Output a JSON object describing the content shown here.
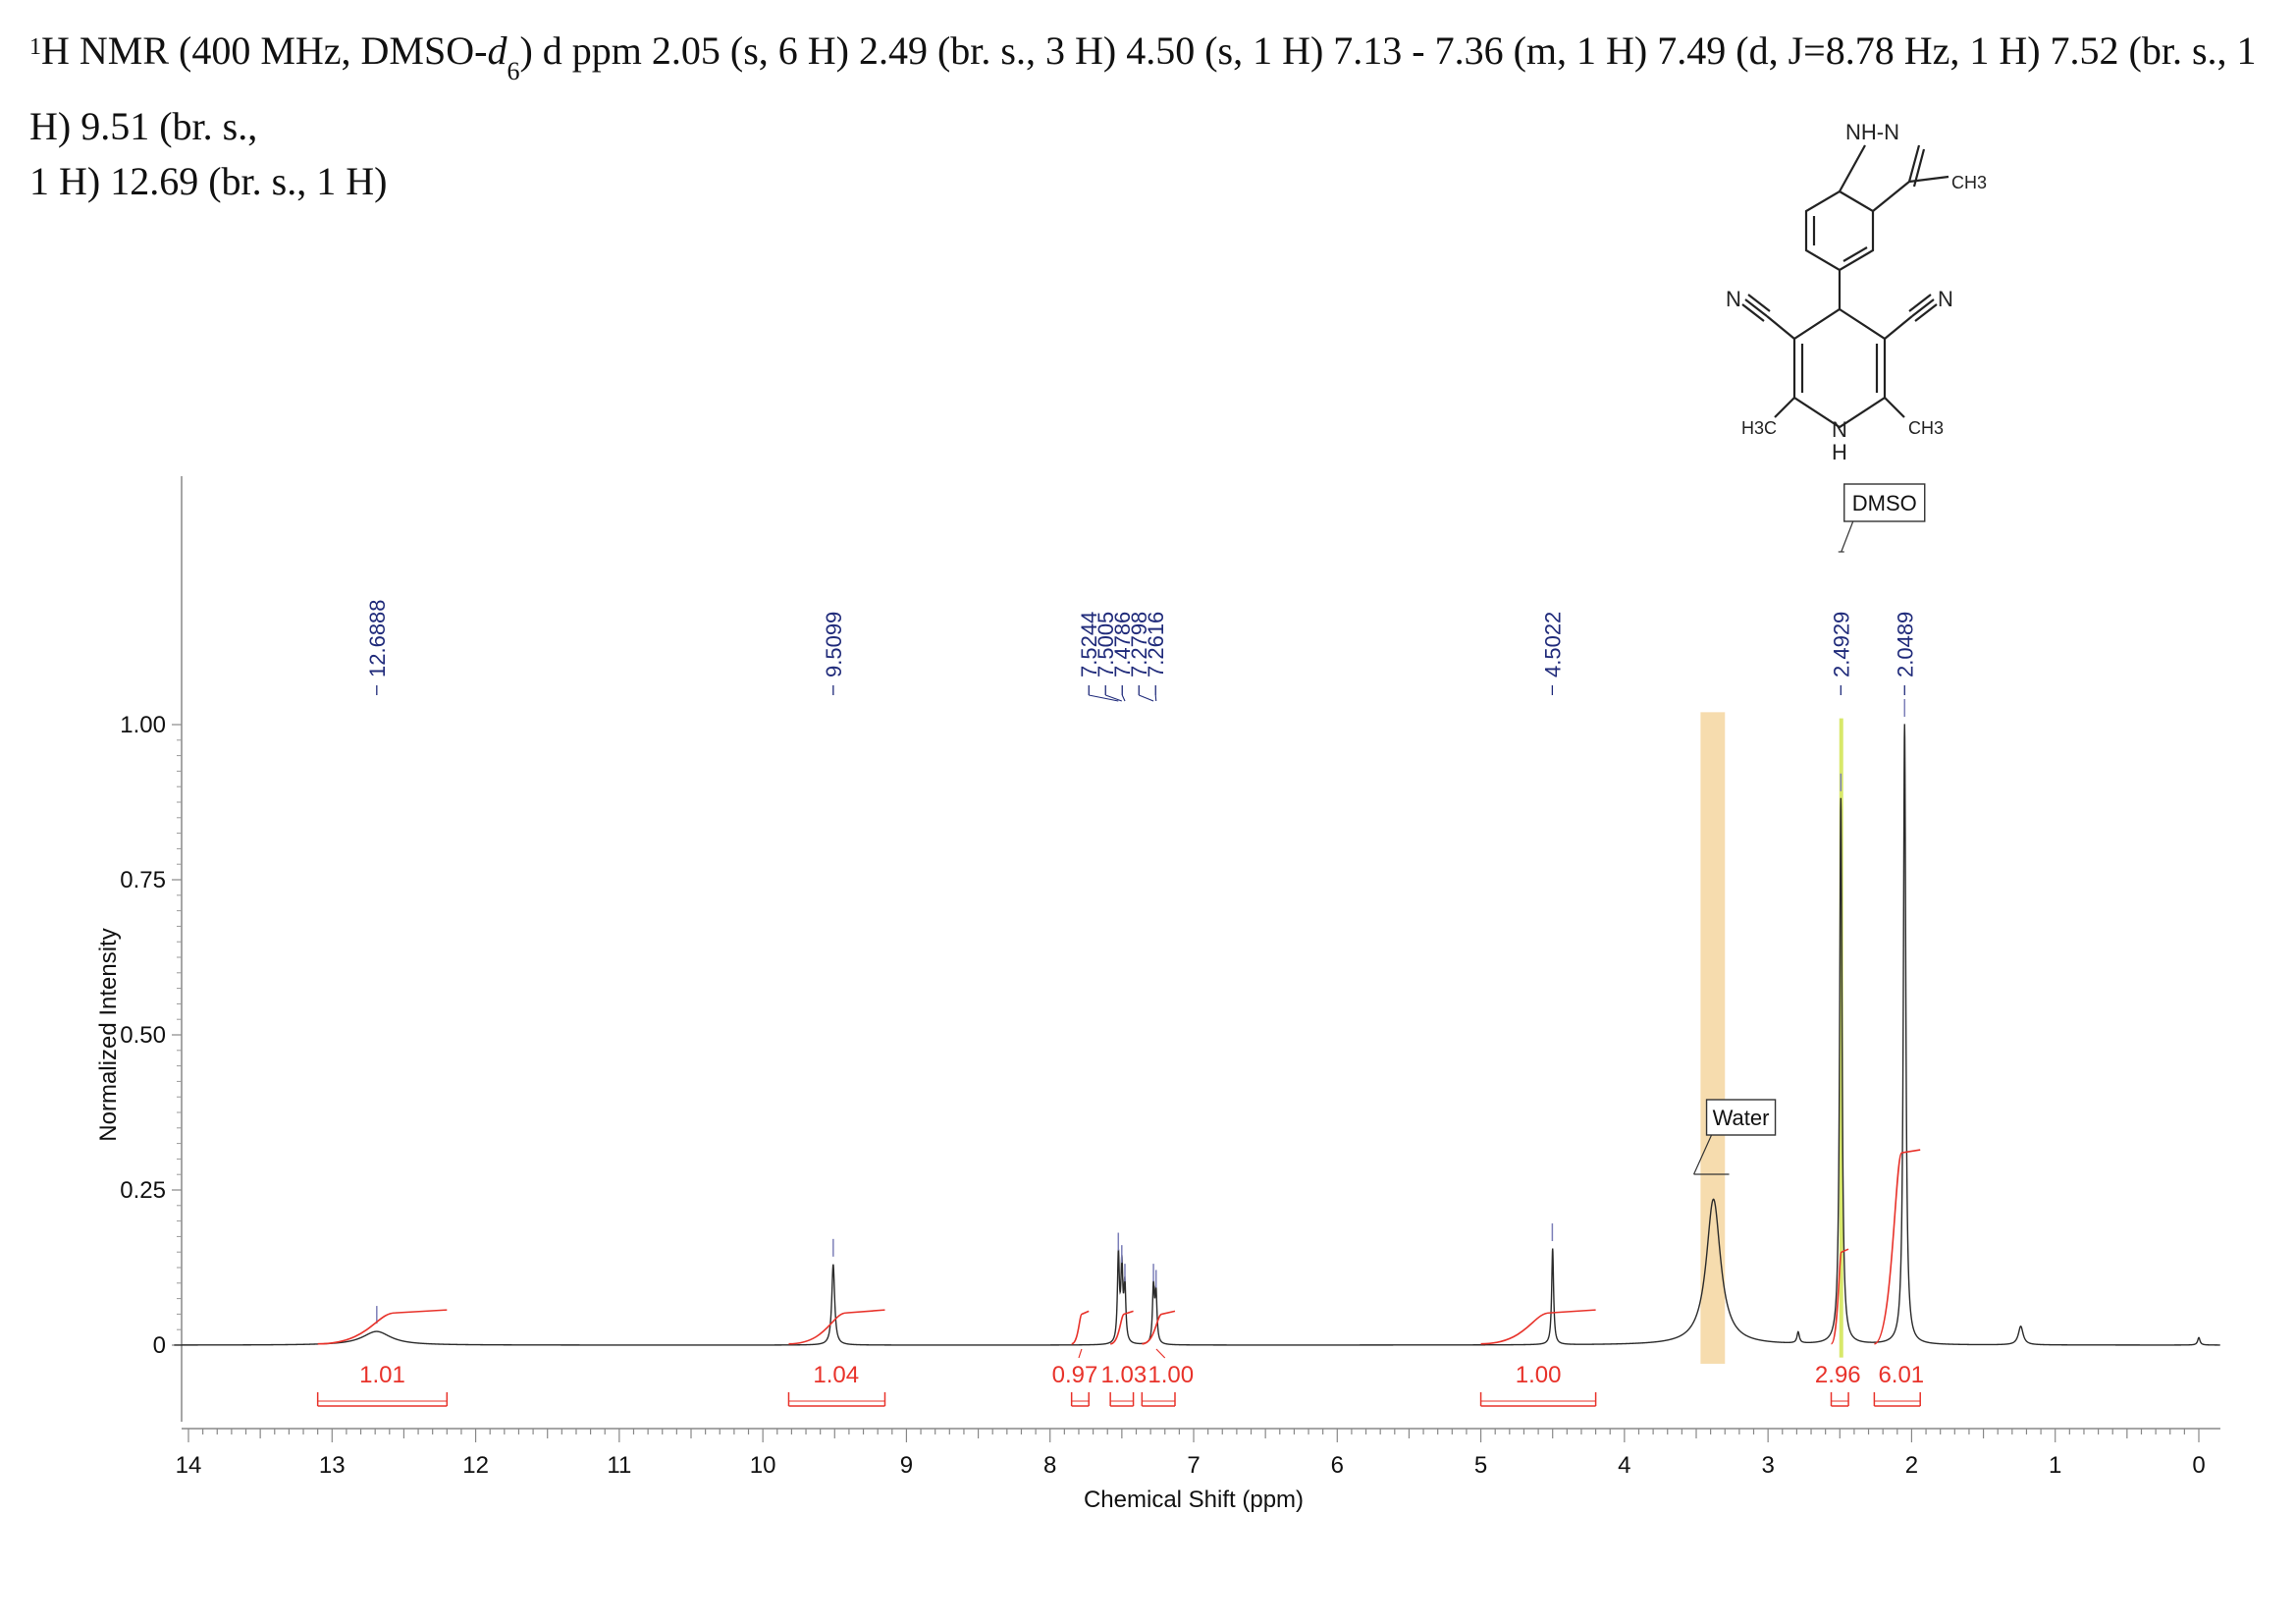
{
  "header": {
    "line1_pre": "H NMR (400 MHz, DMSO-",
    "line1_sup": "1",
    "line1_d": "d",
    "line1_sub": "6",
    "line1_post": ") d ppm 2.05 (s, 6 H) 2.49 (br. s., 3 H) 4.50 (s, 1 H) 7.13 - 7.36 (m, 1 H) 7.49 (d,  J=8.78 Hz, 1 H) 7.52 (br. s., 1 H) 9.51 (br. s.,",
    "line2": "1 H) 12.69 (br. s., 1 H)"
  },
  "molecule": {
    "nh_n": "NH-N",
    "ch3_top": "CH3",
    "n_left": "N",
    "n_right": "N",
    "h3c": "H3C",
    "ch3_right": "CH3",
    "ring_n": "N",
    "ring_h": "H"
  },
  "colors": {
    "spectrum": "#2b2b2b",
    "integral": "#e8322a",
    "peak_label": "#1f2a7a",
    "water_band": "#f5d6a0",
    "dmso_line": "#d8e86a"
  },
  "chart_data": {
    "type": "line",
    "xlabel": "Chemical Shift (ppm)",
    "ylabel": "Normalized Intensity",
    "xlim": [
      14,
      0
    ],
    "ylim": [
      0,
      1.0
    ],
    "x_ticks": [
      14,
      13,
      12,
      11,
      10,
      9,
      8,
      7,
      6,
      5,
      4,
      3,
      2,
      1,
      0
    ],
    "y_ticks": [
      {
        "value": 0,
        "label": "0"
      },
      {
        "value": 0.25,
        "label": "0.25"
      },
      {
        "value": 0.5,
        "label": "0.50"
      },
      {
        "value": 0.75,
        "label": "0.75"
      },
      {
        "value": 1.0,
        "label": "1.00"
      }
    ],
    "peaks": [
      {
        "ppm": 12.69,
        "height": 0.022,
        "width": 0.12
      },
      {
        "ppm": 9.51,
        "height": 0.13,
        "width": 0.012
      },
      {
        "ppm": 7.524,
        "height": 0.14,
        "width": 0.008
      },
      {
        "ppm": 7.5,
        "height": 0.12,
        "width": 0.008
      },
      {
        "ppm": 7.479,
        "height": 0.09,
        "width": 0.008
      },
      {
        "ppm": 7.28,
        "height": 0.09,
        "width": 0.008
      },
      {
        "ppm": 7.262,
        "height": 0.08,
        "width": 0.008
      },
      {
        "ppm": 4.5,
        "height": 0.155,
        "width": 0.008
      },
      {
        "ppm": 3.38,
        "height": 0.235,
        "width": 0.06
      },
      {
        "ppm": 2.79,
        "height": 0.018,
        "width": 0.01
      },
      {
        "ppm": 2.493,
        "height": 0.88,
        "width": 0.01
      },
      {
        "ppm": 2.049,
        "height": 1.0,
        "width": 0.01
      },
      {
        "ppm": 1.24,
        "height": 0.03,
        "width": 0.02
      },
      {
        "ppm": 0.0,
        "height": 0.012,
        "width": 0.01
      }
    ],
    "peak_labels": [
      {
        "ppm": 12.6888,
        "label": "12.6888"
      },
      {
        "ppm": 9.5099,
        "label": "9.5099"
      },
      {
        "ppm": 7.5244,
        "label": "7.5244"
      },
      {
        "ppm": 7.5005,
        "label": "7.5005"
      },
      {
        "ppm": 7.4786,
        "label": "7.4786"
      },
      {
        "ppm": 7.2798,
        "label": "7.2798"
      },
      {
        "ppm": 7.2616,
        "label": "7.2616"
      },
      {
        "ppm": 4.5022,
        "label": "4.5022"
      },
      {
        "ppm": 2.4929,
        "label": "2.4929"
      },
      {
        "ppm": 2.0489,
        "label": "2.0489"
      }
    ],
    "integrals": [
      {
        "from": 13.1,
        "to": 12.2,
        "value": "1.01",
        "level": 0.052
      },
      {
        "from": 9.82,
        "to": 9.15,
        "value": "1.04",
        "level": 0.052
      },
      {
        "from": 7.85,
        "to": 7.73,
        "value": "0.97",
        "level": 0.05
      },
      {
        "from": 7.58,
        "to": 7.42,
        "value": "1.03",
        "level": 0.05
      },
      {
        "from": 7.36,
        "to": 7.13,
        "value": "1.00",
        "level": 0.05
      },
      {
        "from": 5.0,
        "to": 4.2,
        "value": "1.00",
        "level": 0.052
      },
      {
        "from": 2.56,
        "to": 2.44,
        "value": "2.96",
        "level": 0.15
      },
      {
        "from": 2.26,
        "to": 1.94,
        "value": "6.01",
        "level": 0.31
      }
    ],
    "annotations": [
      {
        "label": "DMSO",
        "ppm": 2.49
      },
      {
        "label": "Water",
        "ppm": 3.38
      }
    ]
  }
}
